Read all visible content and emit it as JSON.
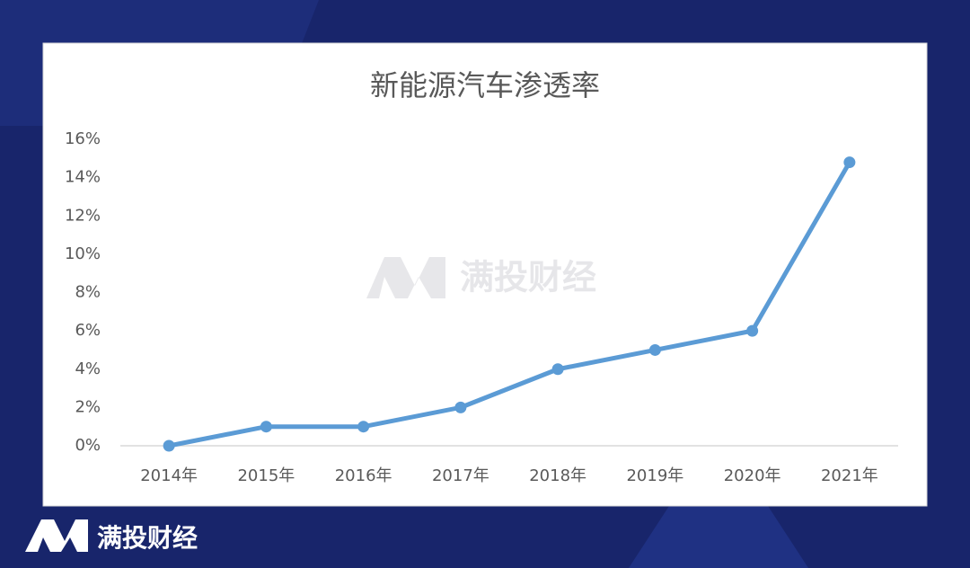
{
  "chart_data": {
    "type": "line",
    "title": "新能源汽车渗透率",
    "categories": [
      "2014年",
      "2015年",
      "2016年",
      "2017年",
      "2018年",
      "2019年",
      "2020年",
      "2021年"
    ],
    "series": [
      {
        "name": "新能源汽车渗透率",
        "color": "#5b9bd5",
        "values": [
          0,
          1,
          1,
          2,
          4,
          5,
          6,
          14.8
        ]
      }
    ],
    "ylim": [
      0,
      16
    ],
    "yticks": [
      {
        "value": 0,
        "label": "0%"
      },
      {
        "value": 2,
        "label": "2%"
      },
      {
        "value": 4,
        "label": "4%"
      },
      {
        "value": 6,
        "label": "6%"
      },
      {
        "value": 8,
        "label": "8%"
      },
      {
        "value": 10,
        "label": "10%"
      },
      {
        "value": 12,
        "label": "12%"
      },
      {
        "value": 14,
        "label": "14%"
      },
      {
        "value": 16,
        "label": "16%"
      }
    ],
    "grid": false
  },
  "watermark": "满投财经",
  "brand": "满投财经"
}
